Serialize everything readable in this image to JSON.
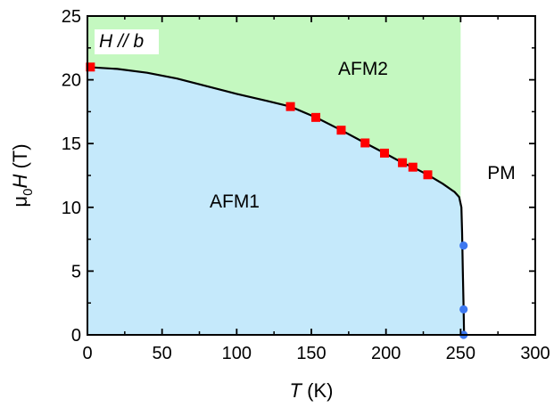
{
  "chart_data": {
    "type": "scatter",
    "title": "",
    "annotation": "H // b",
    "xlabel": {
      "italic": "T",
      "rest": " (K)"
    },
    "ylabel": {
      "mu": "μ",
      "sub": "0",
      "italic": "H",
      "rest": " (T)"
    },
    "xlim": [
      0,
      300
    ],
    "ylim": [
      0,
      25
    ],
    "x_ticks": [
      0,
      50,
      100,
      150,
      200,
      250,
      300
    ],
    "y_ticks": [
      0,
      5,
      10,
      15,
      20,
      25
    ],
    "grid": false,
    "regions": [
      {
        "name": "AFM1",
        "color": "#c5e9fb"
      },
      {
        "name": "AFM2",
        "color": "#c4f8c0"
      },
      {
        "name": "PM",
        "color": "#ffffff"
      }
    ],
    "phase_boundary": {
      "color": "#000000",
      "points": [
        [
          0,
          21.0
        ],
        [
          20,
          20.85
        ],
        [
          40,
          20.55
        ],
        [
          60,
          20.1
        ],
        [
          80,
          19.5
        ],
        [
          100,
          18.9
        ],
        [
          120,
          18.35
        ],
        [
          136,
          17.9
        ],
        [
          153,
          17.05
        ],
        [
          170,
          16.05
        ],
        [
          186,
          15.05
        ],
        [
          199,
          14.25
        ],
        [
          211,
          13.5
        ],
        [
          218,
          13.15
        ],
        [
          228,
          12.55
        ],
        [
          238,
          11.85
        ],
        [
          246,
          11.2
        ],
        [
          249,
          10.8
        ],
        [
          250.5,
          10.0
        ],
        [
          251,
          8.0
        ],
        [
          251.5,
          5.0
        ],
        [
          252,
          2.0
        ],
        [
          252.3,
          0
        ]
      ]
    },
    "afm2_upper_T": 250,
    "series": [
      {
        "marker": "square",
        "color": "#ff0000",
        "points": [
          [
            2,
            21.0
          ],
          [
            136,
            17.9
          ],
          [
            153,
            17.05
          ],
          [
            170,
            16.05
          ],
          [
            186,
            15.05
          ],
          [
            199,
            14.25
          ],
          [
            211,
            13.5
          ],
          [
            218,
            13.15
          ],
          [
            228,
            12.55
          ]
        ]
      },
      {
        "marker": "circle",
        "color": "#3d78f0",
        "points": [
          [
            252,
            7.0
          ],
          [
            252,
            2.0
          ],
          [
            252,
            0
          ]
        ]
      }
    ]
  }
}
